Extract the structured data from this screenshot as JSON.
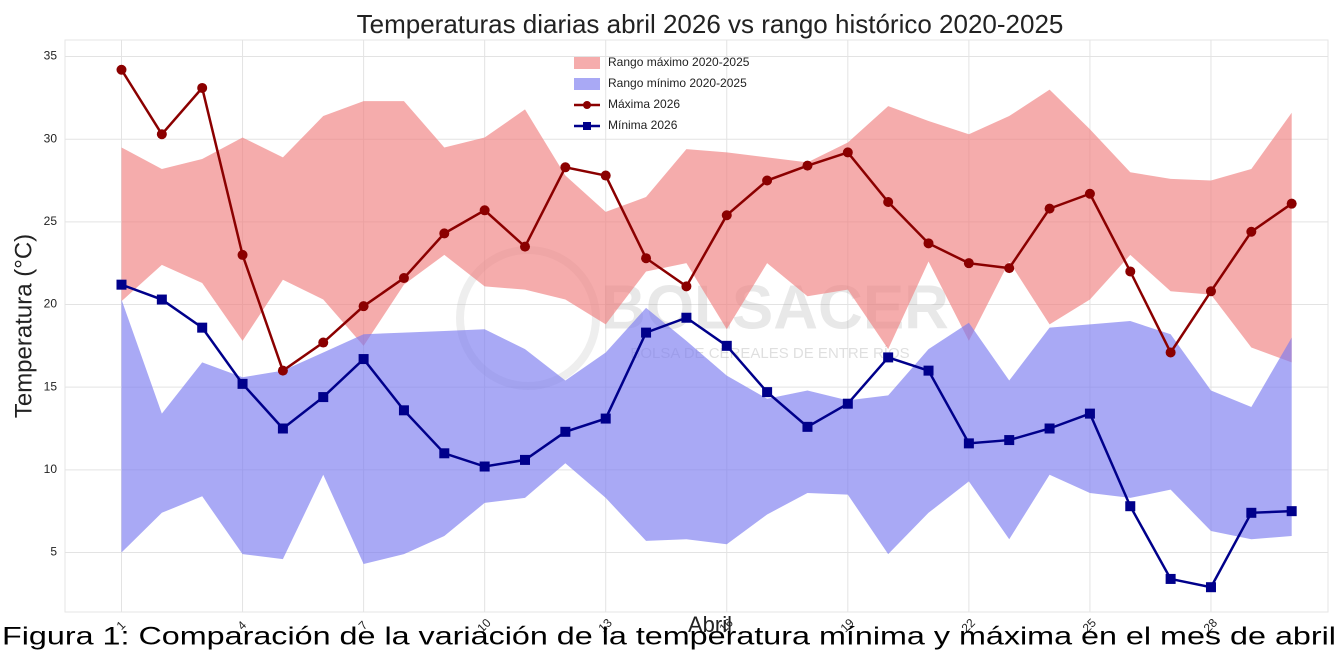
{
  "chart_data": {
    "type": "line",
    "title": "Temperaturas diarias abril 2026 vs rango histórico 2020-2025",
    "xlabel": "Abril",
    "ylabel": "Temperatura (°C)",
    "caption": "Figura 1: Comparación de la variación de la temperatura mínima y máxima en el mes de abril",
    "watermark": "BOLSACER",
    "watermark_subtitle": "BOLSA DE CEREALES DE ENTRE RÍOS",
    "x": [
      1,
      2,
      3,
      4,
      5,
      6,
      7,
      8,
      9,
      10,
      11,
      12,
      13,
      14,
      15,
      16,
      17,
      18,
      19,
      20,
      21,
      22,
      23,
      24,
      25,
      26,
      27,
      28,
      29,
      30
    ],
    "xlim": [
      -0.4,
      30.9
    ],
    "xticks": [
      1,
      4,
      7,
      10,
      13,
      16,
      19,
      22,
      25,
      28
    ],
    "ylim": [
      1.4,
      36
    ],
    "yticks": [
      5,
      10,
      15,
      20,
      25,
      30,
      35
    ],
    "grid": true,
    "legend": "upper center",
    "bands": [
      {
        "name": "Rango máximo 2020-2025",
        "color": "#f08080",
        "upper": [
          29.5,
          28.2,
          28.8,
          30.1,
          28.9,
          31.4,
          32.3,
          32.3,
          29.5,
          30.1,
          31.8,
          27.8,
          25.6,
          26.5,
          29.4,
          29.2,
          28.9,
          28.6,
          29.8,
          32.0,
          31.1,
          30.3,
          31.4,
          33.0,
          30.6,
          28.0,
          27.6,
          27.5,
          28.2,
          31.6
        ],
        "lower": [
          20.2,
          22.4,
          21.3,
          17.8,
          21.5,
          20.3,
          17.5,
          21.2,
          23.0,
          21.1,
          20.9,
          20.3,
          18.8,
          22.0,
          22.5,
          18.5,
          22.5,
          20.5,
          20.9,
          17.3,
          22.6,
          17.8,
          22.6,
          18.8,
          20.3,
          23.0,
          20.8,
          20.6,
          17.4,
          16.5
        ]
      },
      {
        "name": "Rango mínimo 2020-2025",
        "color": "#7b7bf0",
        "upper": [
          20.3,
          13.4,
          16.5,
          15.6,
          16.0,
          17.1,
          18.2,
          18.3,
          18.4,
          18.5,
          17.3,
          15.4,
          17.1,
          19.8,
          17.8,
          15.7,
          14.3,
          14.8,
          14.2,
          14.5,
          17.3,
          18.9,
          15.4,
          18.6,
          18.8,
          19.0,
          18.2,
          14.8,
          13.8,
          18.0
        ],
        "lower": [
          5.0,
          7.4,
          8.4,
          4.9,
          4.6,
          9.7,
          4.3,
          4.9,
          6.0,
          8.0,
          8.3,
          10.4,
          8.3,
          5.7,
          5.8,
          5.5,
          7.3,
          8.6,
          8.5,
          4.9,
          7.4,
          9.3,
          5.8,
          9.7,
          8.6,
          8.3,
          8.8,
          6.3,
          5.8,
          6.0
        ]
      }
    ],
    "series": [
      {
        "name": "Máxima 2026",
        "color": "#8b0000",
        "marker": "circle",
        "values": [
          34.2,
          30.3,
          33.1,
          23.0,
          16.0,
          17.7,
          19.9,
          21.6,
          24.3,
          25.7,
          23.5,
          28.3,
          27.8,
          22.8,
          21.1,
          25.4,
          27.5,
          28.4,
          29.2,
          26.2,
          23.7,
          22.5,
          22.2,
          25.8,
          26.7,
          22.0,
          17.1,
          20.8,
          24.4,
          26.1
        ]
      },
      {
        "name": "Mínima 2026",
        "color": "#00008b",
        "marker": "square",
        "values": [
          21.2,
          20.3,
          18.6,
          15.2,
          12.5,
          14.4,
          16.7,
          13.6,
          11.0,
          10.2,
          10.6,
          12.3,
          13.1,
          18.3,
          19.2,
          17.5,
          14.7,
          12.6,
          14.0,
          16.8,
          16.0,
          11.6,
          11.8,
          12.5,
          13.4,
          7.8,
          3.4,
          2.9,
          7.4,
          7.5
        ]
      }
    ]
  }
}
